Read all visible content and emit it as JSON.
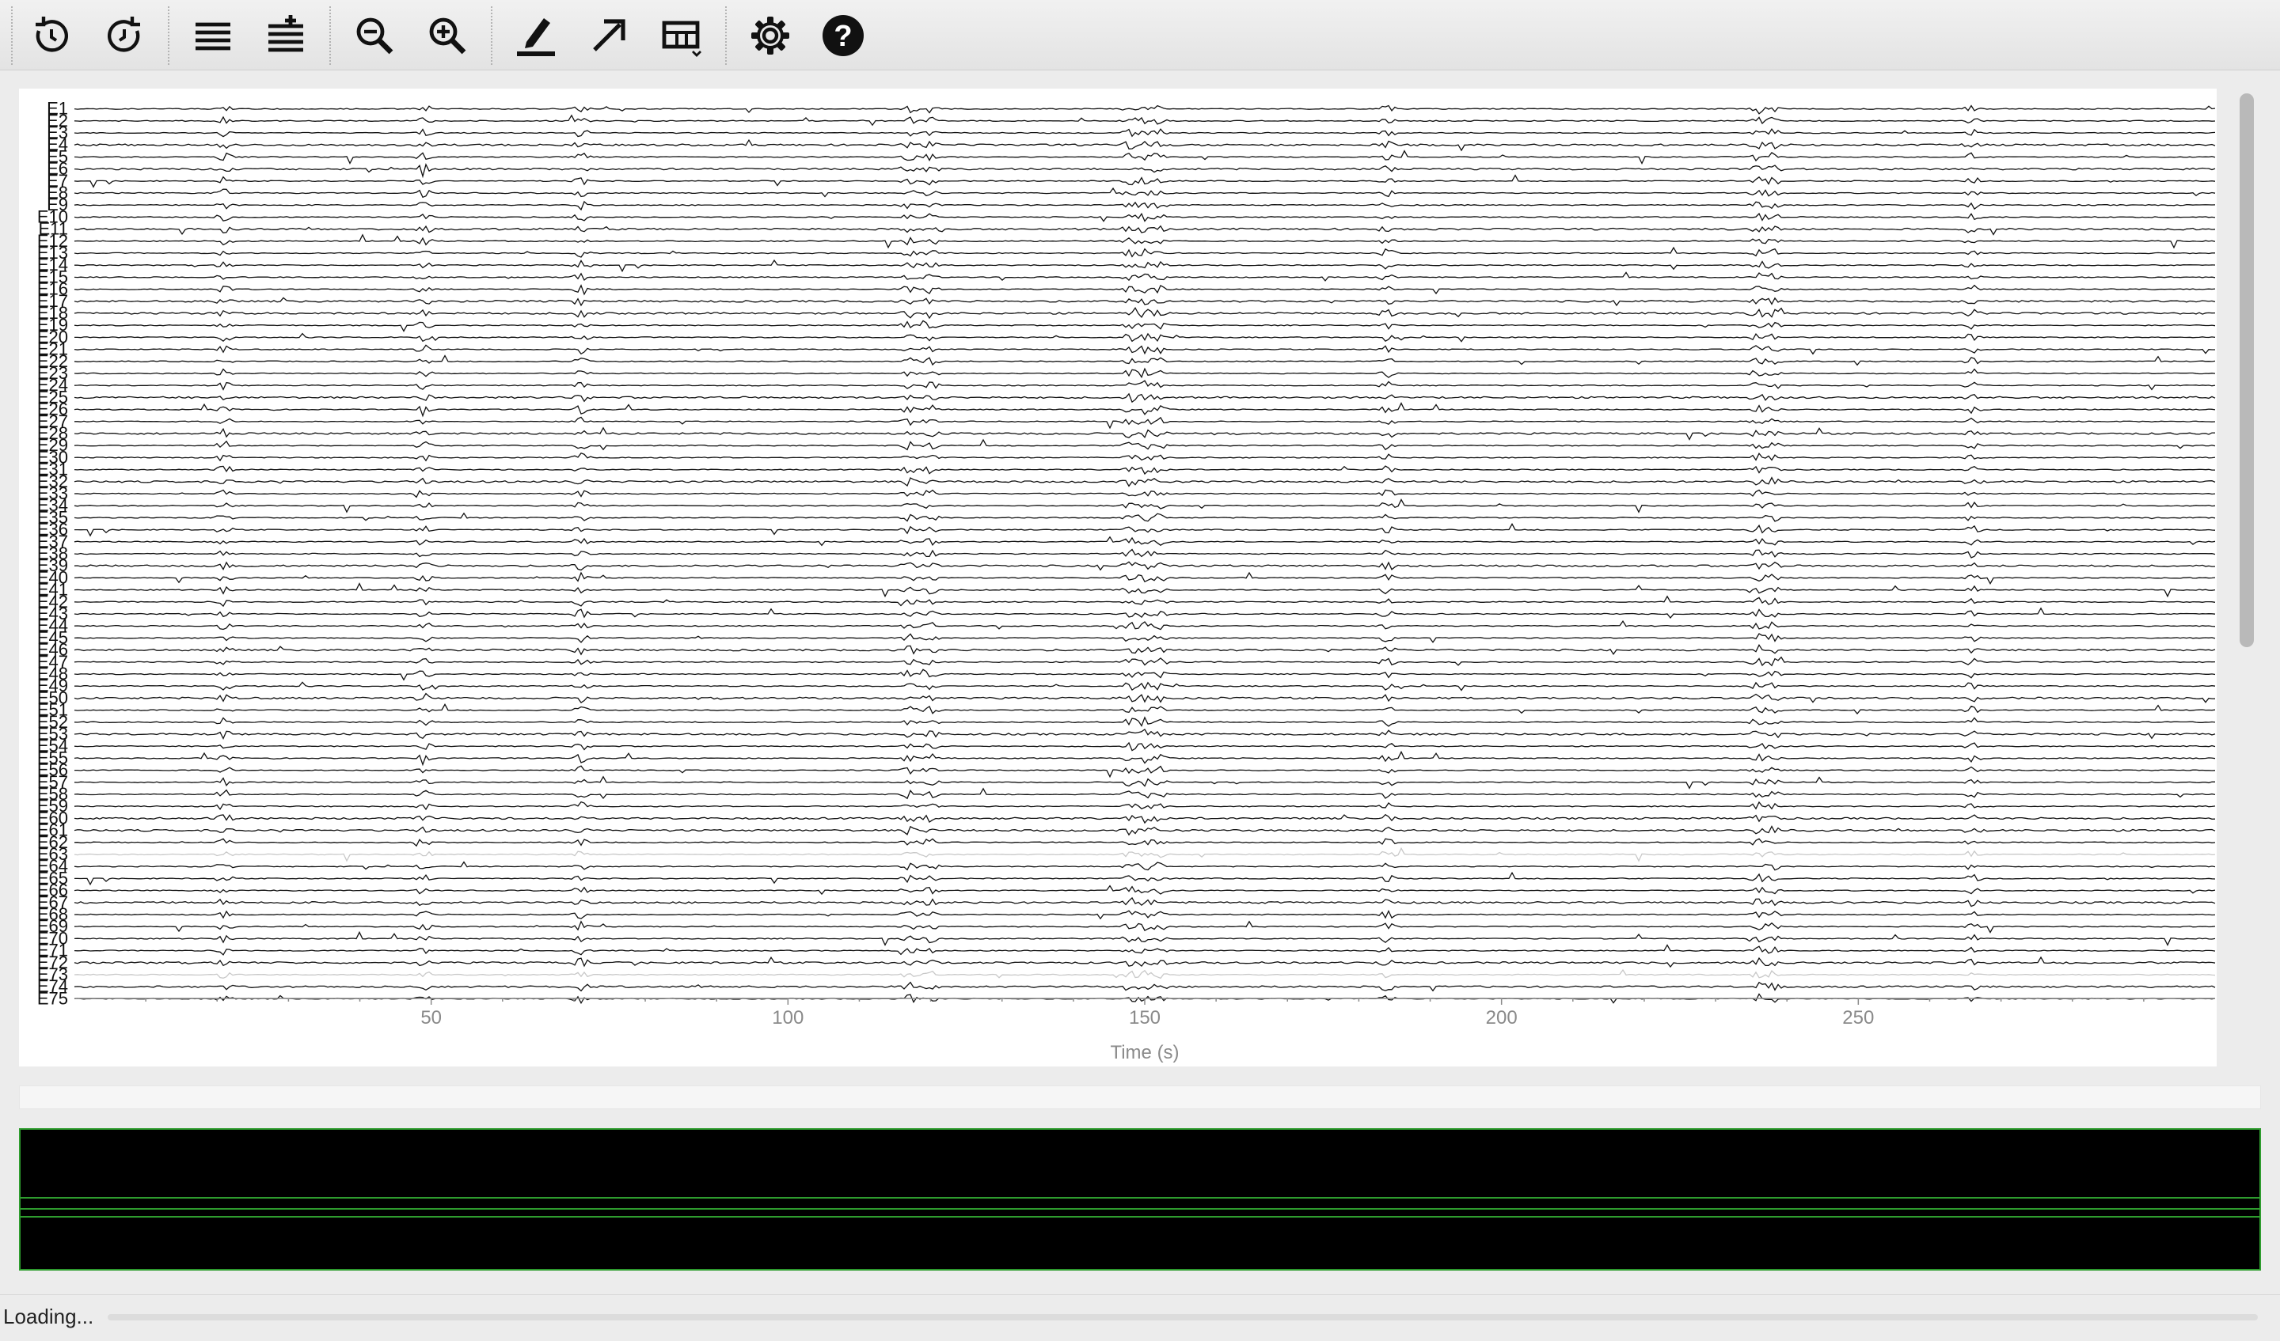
{
  "toolbar": {
    "buttons": [
      {
        "name": "rewind-icon",
        "tooltip": "Back"
      },
      {
        "name": "forward-icon",
        "tooltip": "Forward"
      },
      {
        "name": "fewer-channels-icon",
        "tooltip": "Fewer channels"
      },
      {
        "name": "more-channels-icon",
        "tooltip": "More channels"
      },
      {
        "name": "zoom-out-icon",
        "tooltip": "Zoom out"
      },
      {
        "name": "zoom-in-icon",
        "tooltip": "Zoom in"
      },
      {
        "name": "annotate-pen-icon",
        "tooltip": "Annotate"
      },
      {
        "name": "arrow-icon",
        "tooltip": "Pointer"
      },
      {
        "name": "table-icon",
        "tooltip": "Layout"
      },
      {
        "name": "gear-icon",
        "tooltip": "Settings"
      },
      {
        "name": "help-icon",
        "tooltip": "Help"
      }
    ]
  },
  "colors": {
    "trace": "#111111",
    "faded_trace": "#c8c8c8",
    "overview_bg": "#000000",
    "overview_line": "#2e9c2e",
    "axis": "#8a8a8a"
  },
  "chart_data": {
    "type": "line",
    "xlabel": "Time (s)",
    "xlim": [
      0,
      300
    ],
    "xticks": [
      50,
      100,
      150,
      200,
      250
    ],
    "channels": [
      "E1",
      "E2",
      "E3",
      "E4",
      "E5",
      "E6",
      "E7",
      "E8",
      "E9",
      "E10",
      "E11",
      "E12",
      "E13",
      "E14",
      "E15",
      "E16",
      "E17",
      "E18",
      "E19",
      "E20",
      "E21",
      "E22",
      "E23",
      "E24",
      "E25",
      "E26",
      "E27",
      "E28",
      "E29",
      "E30",
      "E31",
      "E32",
      "E33",
      "E34",
      "E35",
      "E36",
      "E37",
      "E38",
      "E39",
      "E40",
      "E41",
      "E42",
      "E43",
      "E44",
      "E45",
      "E46",
      "E47",
      "E48",
      "E49",
      "E50",
      "E51",
      "E52",
      "E53",
      "E54",
      "E55",
      "E56",
      "E57",
      "E58",
      "E59",
      "E60",
      "E61",
      "E62",
      "E63",
      "E64",
      "E65",
      "E66",
      "E67",
      "E68",
      "E69",
      "E70",
      "E71",
      "E72",
      "E73",
      "E74",
      "E75"
    ],
    "faded_channels": [
      "E63",
      "E73"
    ],
    "event_times": [
      21,
      49,
      71,
      117,
      120,
      148,
      150,
      152,
      184,
      236,
      238,
      266
    ]
  },
  "status": {
    "text": "Loading...",
    "progress": 0
  }
}
